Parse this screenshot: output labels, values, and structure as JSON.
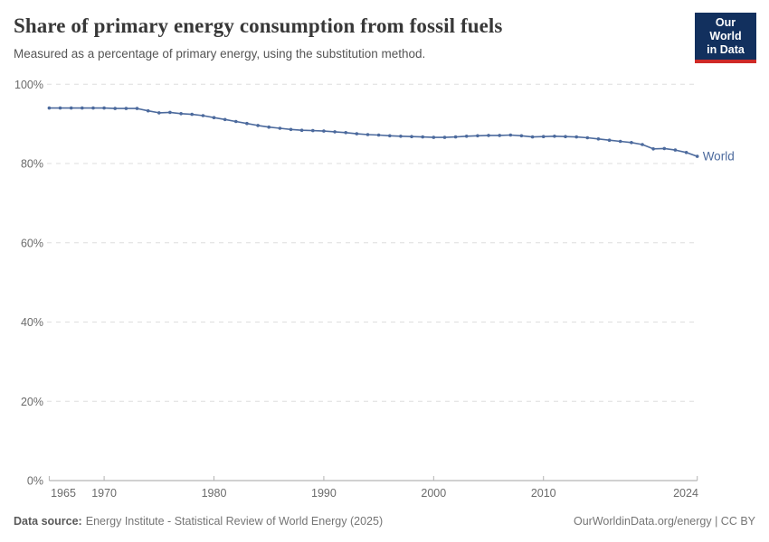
{
  "header": {
    "title": "Share of primary energy consumption from fossil fuels",
    "subtitle": "Measured as a percentage of primary energy, using the substitution method."
  },
  "logo": {
    "line1": "Our World",
    "line2": "in Data",
    "bg_color": "#12305e",
    "accent_color": "#cf2a27"
  },
  "footer": {
    "source_label": "Data source:",
    "source_text": "Energy Institute - Statistical Review of World Energy (2025)",
    "credit": "OurWorldinData.org/energy | CC BY"
  },
  "chart_data": {
    "type": "line",
    "title": "Share of primary energy consumption from fossil fuels",
    "subtitle": "Measured as a percentage of primary energy, using the substitution method.",
    "xlabel": "",
    "ylabel": "",
    "xlim": [
      1965,
      2024
    ],
    "ylim": [
      0,
      100
    ],
    "grid": "horizontal-dashed",
    "legend_position": "right-of-last-point",
    "x_ticks": [
      {
        "value": 1965,
        "label": "1965"
      },
      {
        "value": 1970,
        "label": "1970"
      },
      {
        "value": 1980,
        "label": "1980"
      },
      {
        "value": 1990,
        "label": "1990"
      },
      {
        "value": 2000,
        "label": "2000"
      },
      {
        "value": 2010,
        "label": "2010"
      },
      {
        "value": 2024,
        "label": "2024"
      }
    ],
    "y_ticks": [
      {
        "value": 0,
        "label": "0%"
      },
      {
        "value": 20,
        "label": "20%"
      },
      {
        "value": 40,
        "label": "40%"
      },
      {
        "value": 60,
        "label": "60%"
      },
      {
        "value": 80,
        "label": "80%"
      },
      {
        "value": 100,
        "label": "100%"
      }
    ],
    "series": [
      {
        "name": "World",
        "color": "#4c6a9d",
        "x": [
          1965,
          1966,
          1967,
          1968,
          1969,
          1970,
          1971,
          1972,
          1973,
          1974,
          1975,
          1976,
          1977,
          1978,
          1979,
          1980,
          1981,
          1982,
          1983,
          1984,
          1985,
          1986,
          1987,
          1988,
          1989,
          1990,
          1991,
          1992,
          1993,
          1994,
          1995,
          1996,
          1997,
          1998,
          1999,
          2000,
          2001,
          2002,
          2003,
          2004,
          2005,
          2006,
          2007,
          2008,
          2009,
          2010,
          2011,
          2012,
          2013,
          2014,
          2015,
          2016,
          2017,
          2018,
          2019,
          2020,
          2021,
          2022,
          2023,
          2024
        ],
        "values": [
          94.0,
          94.0,
          94.0,
          94.0,
          94.0,
          94.0,
          93.9,
          93.9,
          93.9,
          93.3,
          92.8,
          92.9,
          92.6,
          92.4,
          92.1,
          91.6,
          91.1,
          90.6,
          90.1,
          89.6,
          89.2,
          88.9,
          88.6,
          88.4,
          88.3,
          88.2,
          88.0,
          87.8,
          87.5,
          87.3,
          87.2,
          87.0,
          86.9,
          86.8,
          86.7,
          86.6,
          86.6,
          86.7,
          86.9,
          87.0,
          87.1,
          87.1,
          87.2,
          87.0,
          86.7,
          86.8,
          86.9,
          86.8,
          86.7,
          86.5,
          86.2,
          85.9,
          85.6,
          85.3,
          84.8,
          83.7,
          83.8,
          83.4,
          82.8,
          81.8
        ]
      }
    ]
  }
}
